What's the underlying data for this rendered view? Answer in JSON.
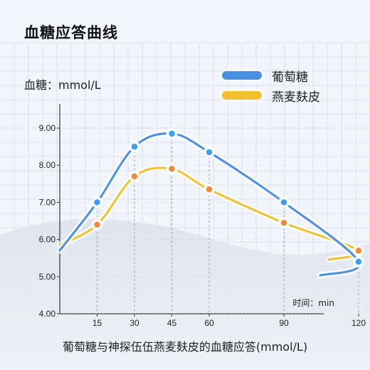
{
  "title": "血糖应答曲线",
  "caption": "葡萄糖与神探伍伍燕麦麸皮的血糖应答(mmol/L)",
  "colors": {
    "glucose": "#4a90e2",
    "oat": "#f2c12e",
    "glucose_dot": "#3a9ff0",
    "oat_dot": "#ef8a3a",
    "grid": "#c8d2e4"
  },
  "chart_data": {
    "type": "line",
    "xlabel": "时间：min",
    "ylabel": "血糖：mmol/L",
    "x_ticks": [
      15,
      30,
      45,
      60,
      90,
      120
    ],
    "y_ticks": [
      "4.00",
      "5.00",
      "6.00",
      "7.00",
      "8.00",
      "9.00"
    ],
    "ylim": [
      4.0,
      9.5
    ],
    "series": [
      {
        "name": "葡萄糖",
        "x": [
          15,
          30,
          45,
          60,
          90,
          120
        ],
        "values": [
          7.0,
          8.5,
          8.85,
          8.35,
          7.0,
          5.4
        ]
      },
      {
        "name": "燕麦麸皮",
        "x": [
          15,
          30,
          45,
          60,
          90,
          120
        ],
        "values": [
          6.4,
          7.7,
          7.9,
          7.35,
          6.45,
          5.7
        ]
      }
    ]
  }
}
